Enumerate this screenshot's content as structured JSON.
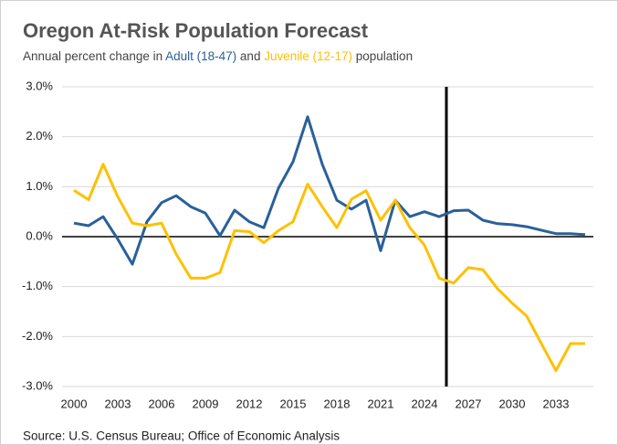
{
  "chart_data": {
    "type": "line",
    "title": "Oregon At-Risk Population Forecast",
    "subtitle_parts": [
      {
        "text": "Annual percent change in "
      },
      {
        "text": "Adult (18-47)",
        "color": "#2a6099"
      },
      {
        "text": " and "
      },
      {
        "text": "Juvenile (12-17)",
        "color": "#ffc000"
      },
      {
        "text": " population"
      }
    ],
    "source": "Source: U.S. Census Bureau; Office of Economic Analysis",
    "x": [
      2000,
      2001,
      2002,
      2003,
      2004,
      2005,
      2006,
      2007,
      2008,
      2009,
      2010,
      2011,
      2012,
      2013,
      2014,
      2015,
      2016,
      2017,
      2018,
      2019,
      2020,
      2021,
      2022,
      2023,
      2024,
      2025,
      2026,
      2027,
      2028,
      2029,
      2030,
      2031,
      2032,
      2033,
      2034,
      2035
    ],
    "series": [
      {
        "name": "Adult (18-47)",
        "color": "#2a6099",
        "values": [
          0.27,
          0.22,
          0.4,
          -0.05,
          -0.55,
          0.3,
          0.68,
          0.82,
          0.6,
          0.47,
          0.02,
          0.53,
          0.3,
          0.18,
          0.97,
          1.5,
          2.4,
          1.45,
          0.73,
          0.55,
          0.73,
          -0.28,
          0.73,
          0.4,
          0.5,
          0.4,
          0.52,
          0.53,
          0.33,
          0.26,
          0.24,
          0.2,
          0.13,
          0.06,
          0.06,
          0.04
        ]
      },
      {
        "name": "Juvenile (12-17)",
        "color": "#ffc000",
        "values": [
          0.93,
          0.74,
          1.45,
          0.8,
          0.27,
          0.22,
          0.27,
          -0.35,
          -0.83,
          -0.83,
          -0.72,
          0.12,
          0.1,
          -0.12,
          0.12,
          0.3,
          1.05,
          0.6,
          0.18,
          0.75,
          0.92,
          0.33,
          0.73,
          0.18,
          -0.17,
          -0.83,
          -0.93,
          -0.62,
          -0.66,
          -1.04,
          -1.33,
          -1.59,
          -2.14,
          -2.68,
          -2.14,
          -2.14
        ]
      }
    ],
    "xlim": [
      2000,
      2035
    ],
    "xticks": [
      2000,
      2003,
      2006,
      2009,
      2012,
      2015,
      2018,
      2021,
      2024,
      2027,
      2030,
      2033
    ],
    "ylim": [
      -3,
      3
    ],
    "yticks": [
      {
        "value": 3,
        "label": "3.0%"
      },
      {
        "value": 2,
        "label": "2.0%"
      },
      {
        "value": 1,
        "label": "1.0%"
      },
      {
        "value": 0,
        "label": "0.0%"
      },
      {
        "value": -1,
        "label": "-1.0%"
      },
      {
        "value": -2,
        "label": "-2.0%"
      },
      {
        "value": -3,
        "label": "-3.0%"
      }
    ],
    "grid": true,
    "divider_x": 2025.5
  }
}
